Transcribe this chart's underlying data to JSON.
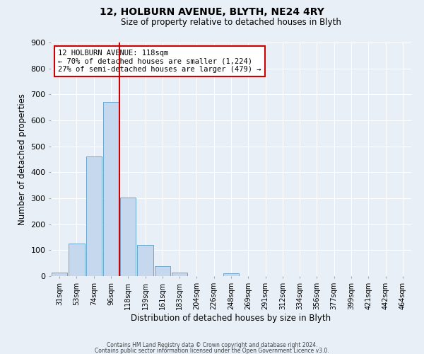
{
  "title": "12, HOLBURN AVENUE, BLYTH, NE24 4RY",
  "subtitle": "Size of property relative to detached houses in Blyth",
  "xlabel": "Distribution of detached houses by size in Blyth",
  "ylabel": "Number of detached properties",
  "bin_labels": [
    "31sqm",
    "53sqm",
    "74sqm",
    "96sqm",
    "118sqm",
    "139sqm",
    "161sqm",
    "183sqm",
    "204sqm",
    "226sqm",
    "248sqm",
    "269sqm",
    "291sqm",
    "312sqm",
    "334sqm",
    "356sqm",
    "377sqm",
    "399sqm",
    "421sqm",
    "442sqm",
    "464sqm"
  ],
  "bar_heights": [
    15,
    125,
    462,
    670,
    302,
    120,
    37,
    15,
    0,
    0,
    10,
    0,
    0,
    0,
    0,
    0,
    0,
    0,
    0,
    0,
    0
  ],
  "bar_color": "#c5d8ed",
  "bar_edge_color": "#5a9dc8",
  "vline_idx": 4,
  "vline_color": "#cc0000",
  "annotation_title": "12 HOLBURN AVENUE: 118sqm",
  "annotation_line1": "← 70% of detached houses are smaller (1,224)",
  "annotation_line2": "27% of semi-detached houses are larger (479) →",
  "annotation_box_edgecolor": "#cc0000",
  "ylim": [
    0,
    900
  ],
  "yticks": [
    0,
    100,
    200,
    300,
    400,
    500,
    600,
    700,
    800,
    900
  ],
  "footer1": "Contains HM Land Registry data © Crown copyright and database right 2024.",
  "footer2": "Contains public sector information licensed under the Open Government Licence v3.0.",
  "bg_color": "#e8eff6",
  "plot_bg_color": "#e8eff6",
  "title_fontsize": 10,
  "subtitle_fontsize": 8.5
}
